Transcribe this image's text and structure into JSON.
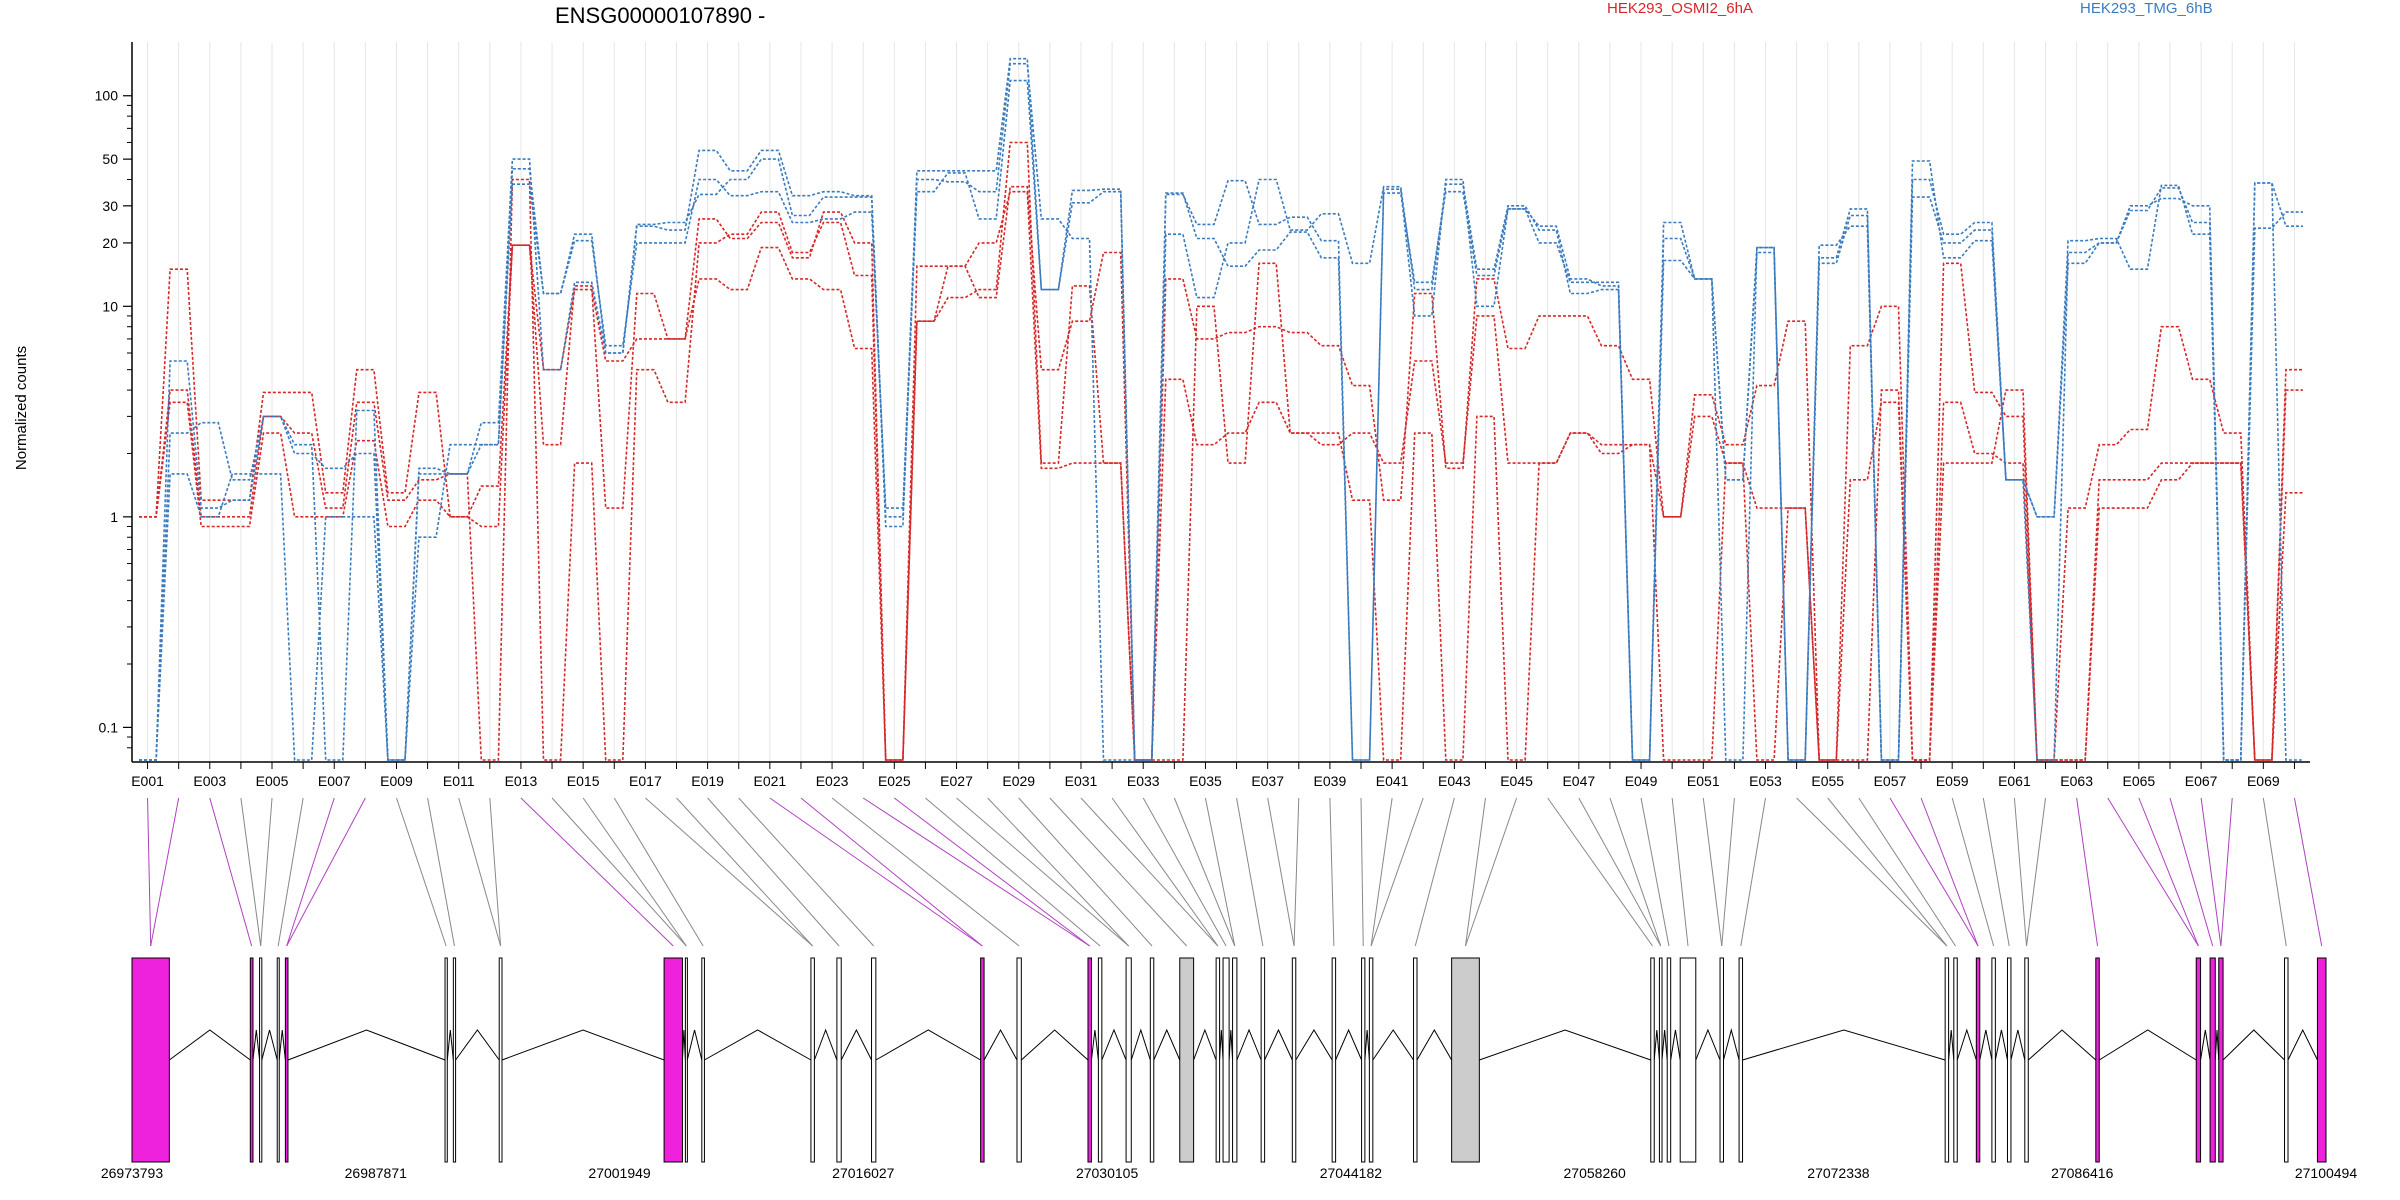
{
  "chart_data": {
    "type": "line",
    "title": "ENSG00000107890 -",
    "xlabel": "",
    "ylabel": "Normalized counts",
    "yscale": "log",
    "ylim": [
      0.07,
      180
    ],
    "yticks": [
      0.1,
      1,
      10,
      20,
      30,
      50,
      100
    ],
    "ytick_labels": [
      "0.1",
      "1",
      "10",
      "20",
      "30",
      "50",
      "100"
    ],
    "grid": "vertical",
    "legend": [
      {
        "name": "HEK293_OSMI2_6hA",
        "color": "#d62728",
        "position": "top-center"
      },
      {
        "name": "HEK293_TMG_6hB",
        "color": "#3a7bbf",
        "position": "top-right"
      }
    ],
    "exon_ids": [
      "E001",
      "E002",
      "E003",
      "E004",
      "E005",
      "E006",
      "E007",
      "E008",
      "E009",
      "E010",
      "E011",
      "E012",
      "E013",
      "E014",
      "E015",
      "E016",
      "E017",
      "E018",
      "E019",
      "E020",
      "E021",
      "E022",
      "E023",
      "E024",
      "E025",
      "E026",
      "E027",
      "E028",
      "E029",
      "E030",
      "E031",
      "E032",
      "E033",
      "E034",
      "E035",
      "E036",
      "E037",
      "E038",
      "E039",
      "E040",
      "E041",
      "E042",
      "E043",
      "E044",
      "E045",
      "E046",
      "E047",
      "E048",
      "E049",
      "E050",
      "E051",
      "E052",
      "E053",
      "E054",
      "E055",
      "E056",
      "E057",
      "E058",
      "E059",
      "E060",
      "E061",
      "E062",
      "E063",
      "E064",
      "E065",
      "E066",
      "E067",
      "E068",
      "E069",
      "E070"
    ],
    "exon_tick_labels": [
      "E001",
      "E003",
      "E005",
      "E007",
      "E009",
      "E011",
      "E013",
      "E015",
      "E017",
      "E019",
      "E021",
      "E023",
      "E025",
      "E027",
      "E029",
      "E031",
      "E033",
      "E035",
      "E037",
      "E039",
      "E041",
      "E043",
      "E045",
      "E047",
      "E049",
      "E051",
      "E053",
      "E055",
      "E057",
      "E059",
      "E061",
      "E063",
      "E065",
      "E067",
      "E069"
    ],
    "series": [
      {
        "name": "HEK293_OSMI2_6hA rep1",
        "color": "#d62728",
        "values": [
          1.0,
          15.0,
          1.2,
          1.2,
          3.9,
          3.9,
          1.3,
          5.0,
          1.3,
          3.9,
          1.0,
          0.9,
          19.5,
          2.2,
          12.5,
          1.1,
          11.5,
          7.0,
          13.5,
          12.0,
          19.0,
          13.5,
          12.0,
          6.3,
          0.07,
          8.5,
          15.5,
          11.0,
          37.0,
          5.0,
          8.5,
          18.0,
          0.07,
          13.5,
          7.0,
          7.5,
          8.0,
          7.5,
          6.5,
          4.2,
          1.2,
          11.5,
          1.7,
          13.5,
          6.3,
          9.0,
          9.0,
          6.5,
          4.5,
          1.0,
          3.8,
          2.2,
          4.2,
          8.5,
          0.07,
          6.5,
          10.0,
          0.07,
          16.0,
          3.9,
          3.0,
          0.07,
          1.1,
          2.2,
          2.6,
          8.0,
          4.5,
          2.5,
          0.07,
          5.0
        ]
      },
      {
        "name": "HEK293_OSMI2_6hA rep2",
        "color": "#d62728",
        "values": [
          1.0,
          4.0,
          1.0,
          1.0,
          3.0,
          2.5,
          1.1,
          3.5,
          1.2,
          1.5,
          1.6,
          0.07,
          40.0,
          0.07,
          1.8,
          0.07,
          5.0,
          3.5,
          20.0,
          22.0,
          28.0,
          18.0,
          25.0,
          14.0,
          0.07,
          15.5,
          15.5,
          20.0,
          35.0,
          1.7,
          1.8,
          1.8,
          0.07,
          4.5,
          2.2,
          2.5,
          3.5,
          2.5,
          2.5,
          1.2,
          0.07,
          2.5,
          0.07,
          3.0,
          0.07,
          1.8,
          2.5,
          2.0,
          2.2,
          0.07,
          0.07,
          1.8,
          0.07,
          1.1,
          0.07,
          1.5,
          3.5,
          0.07,
          3.5,
          2.0,
          1.8,
          0.07,
          0.07,
          1.1,
          1.1,
          1.5,
          1.8,
          1.8,
          0.07,
          1.3
        ]
      },
      {
        "name": "HEK293_OSMI2_6hA rep3",
        "color": "#d62728",
        "values": [
          1.0,
          3.5,
          0.9,
          0.9,
          2.5,
          1.0,
          1.0,
          2.3,
          0.9,
          1.2,
          1.0,
          1.4,
          19.5,
          5.0,
          12.0,
          5.5,
          7.0,
          7.0,
          26.0,
          21.0,
          25.0,
          17.0,
          28.0,
          20.0,
          0.07,
          8.5,
          11.0,
          12.0,
          60.0,
          1.8,
          12.5,
          1.8,
          0.07,
          0.07,
          10.0,
          1.8,
          16.0,
          2.5,
          2.2,
          2.5,
          1.8,
          5.5,
          1.8,
          9.0,
          1.8,
          1.8,
          2.5,
          2.2,
          2.2,
          1.0,
          3.0,
          1.8,
          1.1,
          1.1,
          0.07,
          0.07,
          4.0,
          0.07,
          1.8,
          1.8,
          4.0,
          0.07,
          0.07,
          1.5,
          1.5,
          1.8,
          1.8,
          1.8,
          0.07,
          4.0
        ]
      },
      {
        "name": "HEK293_TMG_6hB rep1",
        "color": "#3a7bbf",
        "values": [
          0.07,
          2.5,
          2.8,
          1.5,
          3.0,
          2.2,
          0.07,
          3.2,
          0.07,
          1.6,
          1.6,
          2.2,
          45.0,
          11.5,
          20.5,
          6.5,
          20.0,
          20.0,
          40.0,
          33.5,
          35.0,
          25.0,
          26.0,
          28.0,
          1.1,
          40.0,
          39.0,
          35.0,
          142.0,
          26.0,
          21.0,
          0.07,
          0.07,
          34.0,
          24.5,
          39.5,
          24.5,
          26.5,
          20.5,
          0.07,
          36.0,
          9.0,
          40.0,
          10.0,
          29.0,
          20.0,
          13.0,
          13.0,
          0.07,
          25.0,
          13.5,
          1.5,
          18.0,
          0.07,
          17.0,
          29.0,
          0.07,
          49.0,
          17.0,
          20.5,
          1.5,
          0.07,
          18.0,
          20.0,
          28.5,
          36.5,
          25.0,
          0.07,
          38.5,
          0.07
        ]
      },
      {
        "name": "HEK293_TMG_6hB rep2",
        "color": "#3a7bbf",
        "values": [
          0.07,
          1.6,
          1.0,
          1.6,
          1.6,
          0.07,
          1.0,
          1.0,
          0.07,
          0.8,
          2.2,
          2.2,
          38.0,
          11.5,
          22.0,
          6.0,
          24.0,
          23.0,
          55.0,
          44.0,
          55.0,
          33.5,
          35.0,
          33.5,
          0.9,
          44.0,
          44.0,
          44.0,
          150.0,
          12.0,
          31.0,
          35.0,
          0.07,
          34.5,
          21.0,
          15.5,
          18.5,
          22.5,
          17.0,
          0.07,
          34.5,
          13.0,
          35.0,
          14.0,
          29.0,
          24.0,
          13.5,
          12.5,
          0.07,
          21.0,
          13.5,
          0.07,
          19.0,
          0.07,
          19.5,
          24.0,
          0.07,
          33.0,
          20.0,
          23.0,
          1.5,
          1.0,
          16.0,
          20.0,
          30.0,
          32.5,
          30.0,
          0.07,
          23.5,
          28.0
        ]
      },
      {
        "name": "HEK293_TMG_6hB rep3",
        "color": "#3a7bbf",
        "values": [
          0.07,
          5.5,
          1.1,
          1.2,
          3.0,
          2.0,
          1.7,
          2.0,
          0.07,
          1.7,
          1.6,
          2.8,
          50.0,
          5.0,
          13.0,
          6.0,
          24.5,
          25.0,
          34.0,
          40.0,
          50.0,
          27.0,
          33.0,
          33.0,
          1.0,
          35.0,
          43.0,
          26.0,
          118.0,
          12.0,
          35.5,
          36.0,
          0.07,
          22.0,
          11.0,
          20.0,
          40.0,
          23.0,
          27.5,
          16.0,
          37.0,
          12.0,
          38.0,
          15.0,
          30.0,
          23.0,
          11.5,
          12.0,
          0.07,
          16.5,
          13.5,
          1.5,
          19.0,
          0.07,
          16.0,
          27.0,
          0.07,
          40.0,
          22.0,
          25.0,
          1.5,
          1.0,
          20.5,
          21.0,
          15.0,
          37.5,
          22.0,
          0.07,
          38.5,
          24.0
        ]
      }
    ],
    "exon_colors_note": "exons colored by significance",
    "gene_model": {
      "genomic_start": 26973793,
      "genomic_end": 27100494,
      "coordinate_labels": [
        "26973793",
        "26987871",
        "27001949",
        "27016027",
        "27030105",
        "27044182",
        "27058260",
        "27072338",
        "27086416",
        "27100494"
      ],
      "exons": [
        {
          "start": 26973793,
          "end": 26975950,
          "color": "#ee22dd"
        },
        {
          "start": 26980625,
          "end": 26980780,
          "color": "#ee22dd"
        },
        {
          "start": 26981160,
          "end": 26981290,
          "color": "#ffffff"
        },
        {
          "start": 26982180,
          "end": 26982290,
          "color": "#ffffff"
        },
        {
          "start": 26982650,
          "end": 26982800,
          "color": "#ee22dd"
        },
        {
          "start": 26991870,
          "end": 26992000,
          "color": "#ffffff"
        },
        {
          "start": 26992350,
          "end": 26992480,
          "color": "#ffffff"
        },
        {
          "start": 26995000,
          "end": 26995160,
          "color": "#ffffff"
        },
        {
          "start": 27004520,
          "end": 27005580,
          "color": "#ee22dd"
        },
        {
          "start": 27005750,
          "end": 27005860,
          "color": "#ffffff"
        },
        {
          "start": 27006700,
          "end": 27006850,
          "color": "#ffffff"
        },
        {
          "start": 27013000,
          "end": 27013200,
          "color": "#ffffff"
        },
        {
          "start": 27014500,
          "end": 27014750,
          "color": "#ffffff"
        },
        {
          "start": 27016500,
          "end": 27016750,
          "color": "#ffffff"
        },
        {
          "start": 27022800,
          "end": 27023000,
          "color": "#ee22dd"
        },
        {
          "start": 27024900,
          "end": 27025150,
          "color": "#ffffff"
        },
        {
          "start": 27029000,
          "end": 27029200,
          "color": "#ee22dd"
        },
        {
          "start": 27029600,
          "end": 27029800,
          "color": "#ffffff"
        },
        {
          "start": 27031200,
          "end": 27031500,
          "color": "#ffffff"
        },
        {
          "start": 27032600,
          "end": 27032800,
          "color": "#ffffff"
        },
        {
          "start": 27034300,
          "end": 27035100,
          "color": "#cccccc"
        },
        {
          "start": 27036400,
          "end": 27036600,
          "color": "#ffffff"
        },
        {
          "start": 27036800,
          "end": 27037150,
          "color": "#ffffff"
        },
        {
          "start": 27037350,
          "end": 27037600,
          "color": "#ffffff"
        },
        {
          "start": 27039000,
          "end": 27039200,
          "color": "#ffffff"
        },
        {
          "start": 27040800,
          "end": 27041000,
          "color": "#ffffff"
        },
        {
          "start": 27043100,
          "end": 27043300,
          "color": "#ffffff"
        },
        {
          "start": 27044800,
          "end": 27044990,
          "color": "#ffffff"
        },
        {
          "start": 27045250,
          "end": 27045450,
          "color": "#ffffff"
        },
        {
          "start": 27047800,
          "end": 27048000,
          "color": "#ffffff"
        },
        {
          "start": 27050000,
          "end": 27051600,
          "color": "#cccccc"
        },
        {
          "start": 27061500,
          "end": 27061700,
          "color": "#ffffff"
        },
        {
          "start": 27062000,
          "end": 27062150,
          "color": "#ffffff"
        },
        {
          "start": 27062450,
          "end": 27062650,
          "color": "#ffffff"
        },
        {
          "start": 27063200,
          "end": 27064100,
          "color": "#ffffff"
        },
        {
          "start": 27065500,
          "end": 27065700,
          "color": "#ffffff"
        },
        {
          "start": 27066600,
          "end": 27066800,
          "color": "#ffffff"
        },
        {
          "start": 27078500,
          "end": 27078700,
          "color": "#ffffff"
        },
        {
          "start": 27079000,
          "end": 27079200,
          "color": "#ffffff"
        },
        {
          "start": 27080300,
          "end": 27080500,
          "color": "#ee22dd"
        },
        {
          "start": 27081200,
          "end": 27081400,
          "color": "#ffffff"
        },
        {
          "start": 27082100,
          "end": 27082300,
          "color": "#ffffff"
        },
        {
          "start": 27083100,
          "end": 27083300,
          "color": "#ffffff"
        },
        {
          "start": 27087200,
          "end": 27087400,
          "color": "#ee22dd"
        },
        {
          "start": 27093000,
          "end": 27093250,
          "color": "#ee22dd"
        },
        {
          "start": 27093800,
          "end": 27094100,
          "color": "#ee22dd"
        },
        {
          "start": 27094300,
          "end": 27094550,
          "color": "#ee22dd"
        },
        {
          "start": 27098100,
          "end": 27098300,
          "color": "#ffffff"
        },
        {
          "start": 27100000,
          "end": 27100494,
          "color": "#ee22dd"
        }
      ]
    }
  }
}
